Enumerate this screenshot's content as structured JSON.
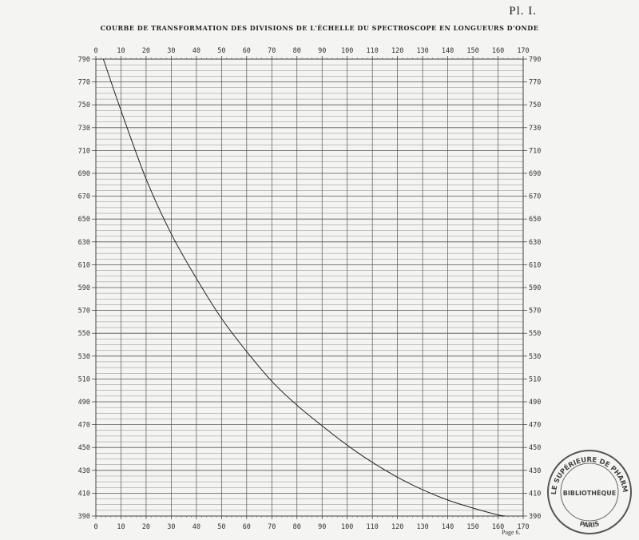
{
  "plate": {
    "label": "Pl. I."
  },
  "chart_data": {
    "type": "line",
    "title": "COURBE DE TRANSFORMATION DES DIVISIONS DE L'ÉCHELLE DU SPECTROSCOPE EN LONGUEURS D'ONDE",
    "xlabel": "",
    "ylabel": "",
    "xlim": [
      0,
      170
    ],
    "ylim": [
      390,
      790
    ],
    "x_ticks": [
      0,
      10,
      20,
      30,
      40,
      50,
      60,
      70,
      80,
      90,
      100,
      110,
      120,
      130,
      140,
      150,
      160,
      170
    ],
    "y_ticks": [
      390,
      410,
      430,
      450,
      470,
      490,
      510,
      530,
      550,
      570,
      590,
      610,
      630,
      650,
      670,
      690,
      710,
      730,
      750,
      770,
      790
    ],
    "grid": true,
    "series": [
      {
        "x": [
          3,
          10,
          20,
          30,
          40,
          50,
          60,
          70,
          80,
          90,
          100,
          110,
          120,
          130,
          140,
          150,
          160,
          163
        ],
        "y": [
          790,
          745,
          685,
          637,
          598,
          563,
          534,
          508,
          487,
          469,
          452,
          437,
          424,
          413,
          404,
          397,
          391,
          390
        ]
      }
    ]
  },
  "footer": {
    "page": "Page 6."
  },
  "stamp": {
    "top_text": "ÉCOLE SUPÉRIEURE DE PHARMACIE",
    "center_text": "BIBLIOTHÈQUE",
    "bottom_text": "PARIS"
  }
}
